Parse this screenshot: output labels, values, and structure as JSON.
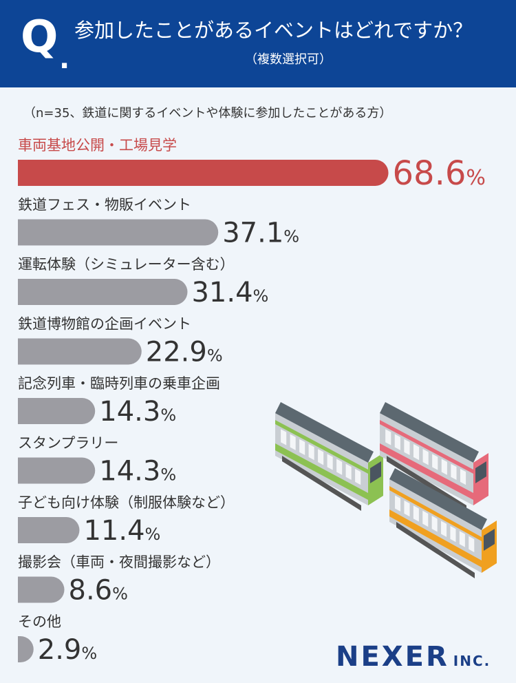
{
  "header": {
    "q_mark": "Q",
    "q_dot": ".",
    "title": "参加したことがあるイベントはどれですか？",
    "subtitle": "（複数選択可）"
  },
  "sample_note": "（n=35、鉄道に関するイベントや体験に参加したことがある方）",
  "logo": {
    "main": "NEXER",
    "suffix": "INC."
  },
  "colors": {
    "header_bg": "#0d4596",
    "highlight": "#c74a4a",
    "bar_default": "#9c9ca2",
    "value_text": "#333333",
    "background": "#f0f5fa"
  },
  "chart_data": {
    "type": "bar",
    "orientation": "horizontal",
    "unit": "%",
    "categories": [
      "車両基地公開・工場見学",
      "鉄道フェス・物販イベント",
      "運転体験（シミュレーター含む）",
      "鉄道博物館の企画イベント",
      "記念列車・臨時列車の乗車企画",
      "スタンプラリー",
      "子ども向け体験（制服体験など）",
      "撮影会（車両・夜間撮影など）",
      "その他"
    ],
    "value_labels": [
      "68.6",
      "37.1",
      "31.4",
      "22.9",
      "14.3",
      "14.3",
      "11.4",
      "8.6",
      "2.9"
    ],
    "values": [
      68.6,
      37.1,
      31.4,
      22.9,
      14.3,
      14.3,
      11.4,
      8.6,
      2.9
    ],
    "highlight_index": 0
  }
}
